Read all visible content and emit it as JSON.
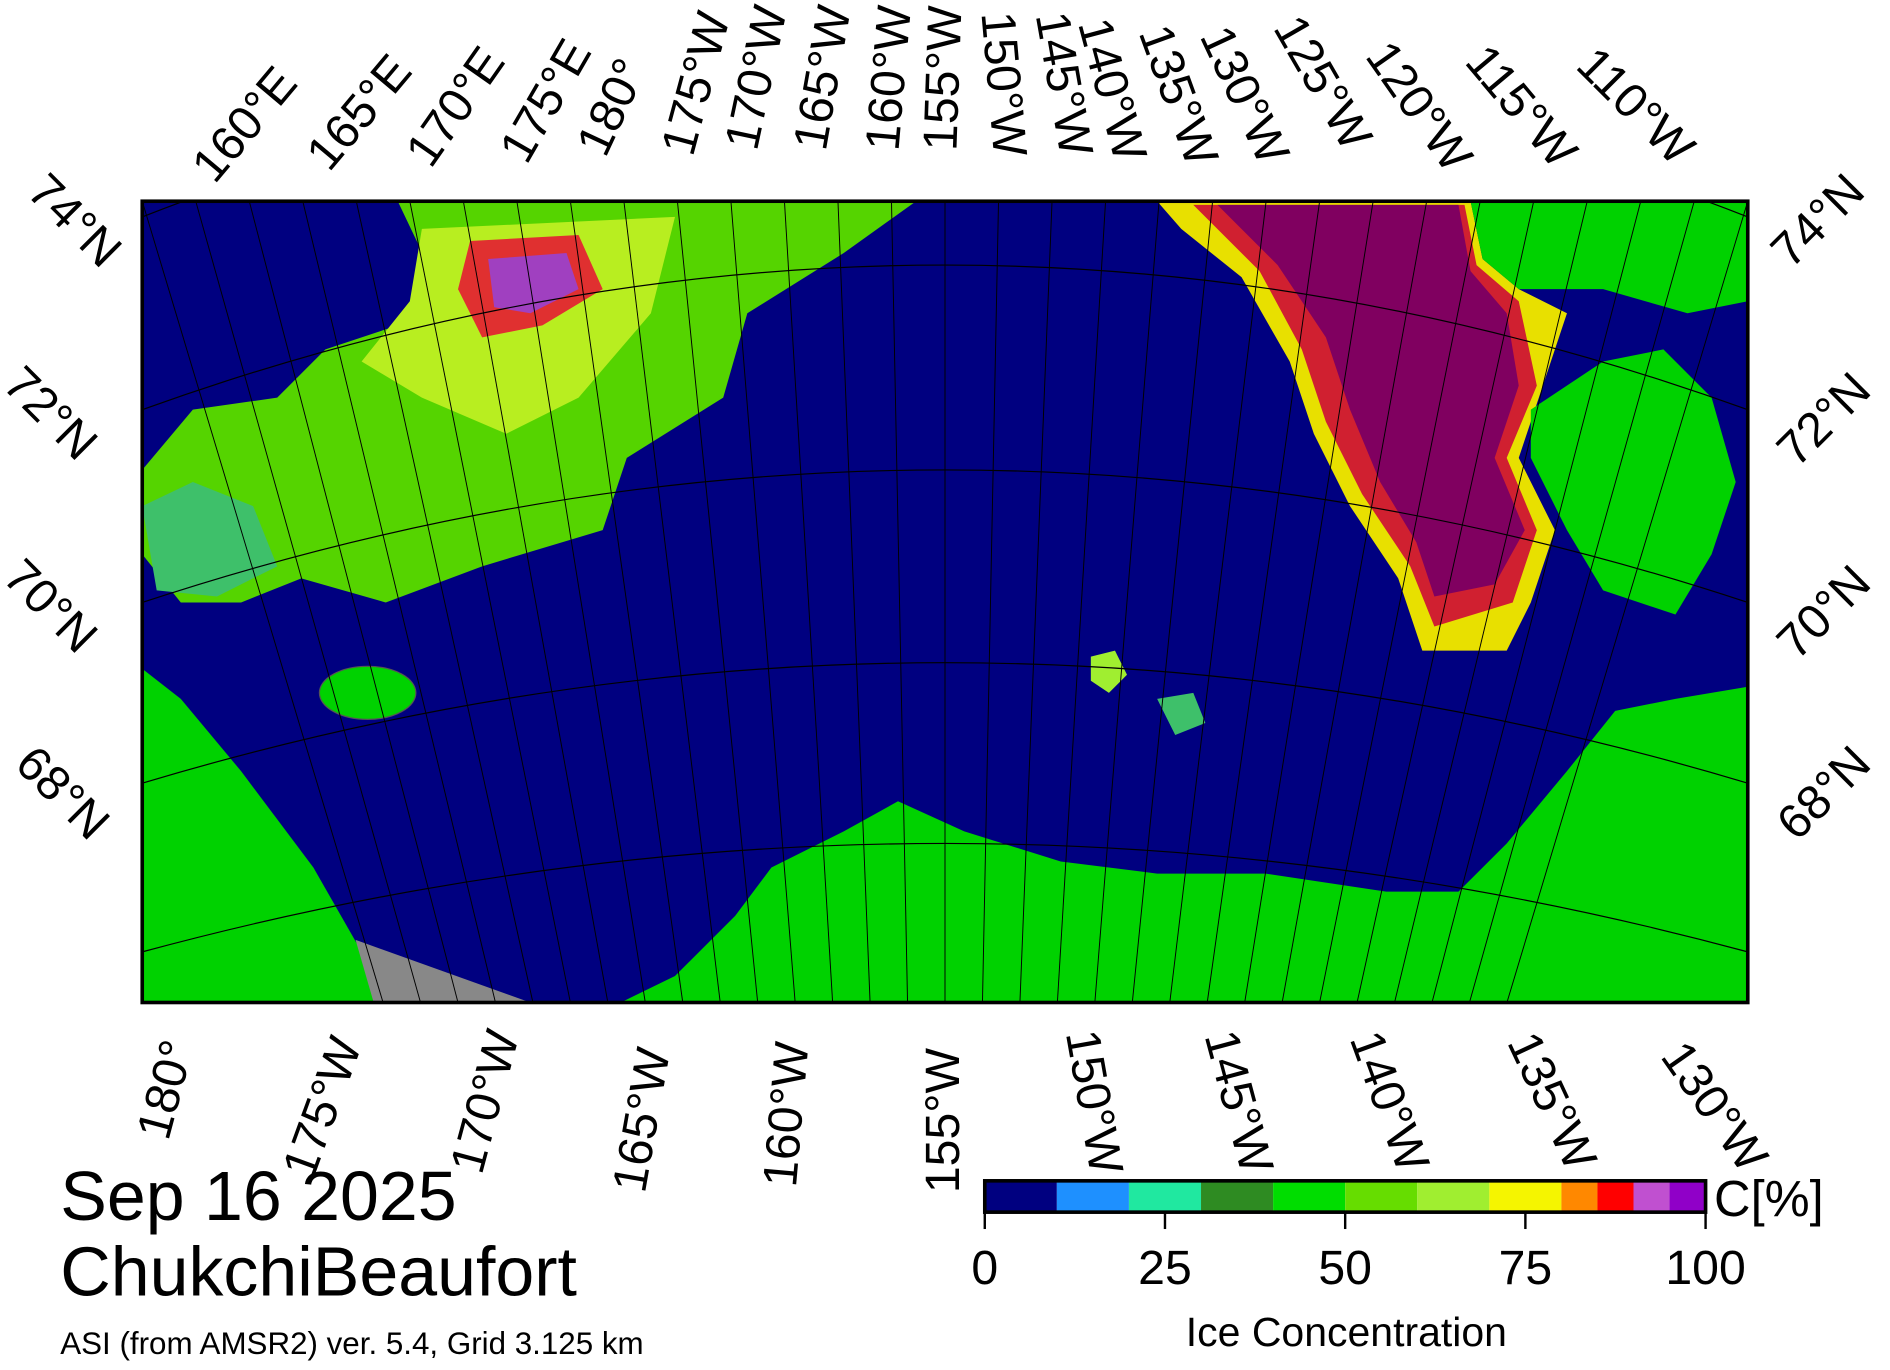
{
  "title": {
    "date": "Sep 16 2025",
    "region": "ChukchiBeaufort",
    "source": "ASI (from AMSR2) ver. 5.4,  Grid 3.125 km"
  },
  "graticule": {
    "top": [
      "160°E",
      "165°E",
      "170°E",
      "175°E",
      "180°",
      "175°W",
      "170°W",
      "165°W",
      "160°W",
      "155°W",
      "150°W",
      "145°W",
      "140°W",
      "135°W",
      "130°W",
      "125°W",
      "120°W",
      "115°W",
      "110°W"
    ],
    "left": [
      "74°N",
      "72°N",
      "70°N",
      "68°N"
    ],
    "right": [
      "74°N",
      "72°N",
      "70°N",
      "68°N"
    ],
    "bottom": [
      "180°",
      "175°W",
      "170°W",
      "165°W",
      "160°W",
      "155°W",
      "150°W",
      "145°W",
      "140°W",
      "135°W",
      "130°W"
    ]
  },
  "colorbar": {
    "title": "Ice Concentration",
    "unit": "C[%]",
    "ticks": [
      0,
      25,
      50,
      75,
      100
    ],
    "bounds": [
      0,
      10,
      20,
      30,
      40,
      50,
      60,
      70,
      80,
      85,
      90,
      95,
      100
    ],
    "colors": [
      "#000080",
      "#1e90ff",
      "#20e8a0",
      "#2e8b22",
      "#00dd00",
      "#66dd00",
      "#a0ee30",
      "#f5f500",
      "#ff8800",
      "#ff0000",
      "#c050d0",
      "#9000c8"
    ]
  }
}
